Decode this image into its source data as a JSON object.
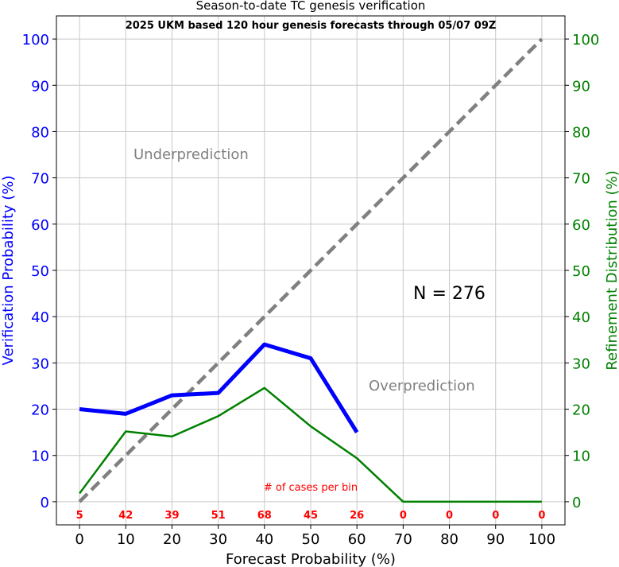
{
  "chart_data": {
    "type": "line",
    "title": "Season-to-date TC genesis verification",
    "subtitle": "2025 UKM based 120 hour genesis forecasts through 05/07 09Z",
    "xlabel": "Forecast Probability (%)",
    "ylabel_left": "Verification Probability (%)",
    "ylabel_right": "Refinement Distribution (%)",
    "xlim": [
      -5,
      105
    ],
    "ylim": [
      -5,
      105
    ],
    "x_ticks": [
      "0",
      "10",
      "20",
      "30",
      "40",
      "50",
      "60",
      "70",
      "80",
      "90",
      "100"
    ],
    "y_ticks": [
      "0",
      "10",
      "20",
      "30",
      "40",
      "50",
      "60",
      "70",
      "80",
      "90",
      "100"
    ],
    "grid": true,
    "series": [
      {
        "color": "#0000ff",
        "style": "thick-solid",
        "x": [
          0,
          10,
          20,
          30,
          40,
          50,
          60
        ],
        "values": [
          20,
          19,
          23,
          23.5,
          34,
          31,
          15
        ]
      },
      {
        "color": "#008000",
        "style": "solid",
        "x": [
          0,
          10,
          20,
          30,
          40,
          50,
          60,
          70,
          80,
          90,
          100
        ],
        "values": [
          1.8,
          15.2,
          14.1,
          18.5,
          24.6,
          16.3,
          9.4,
          0,
          0,
          0,
          0
        ]
      },
      {
        "color": "#808080",
        "style": "dashed",
        "x": [
          0,
          100
        ],
        "values": [
          0,
          100
        ]
      }
    ],
    "annotations": {
      "underprediction": "Underprediction",
      "overprediction": "Overprediction",
      "n_label": "N = 276",
      "cases_label": "# of cases per bin"
    },
    "cases_per_bin": {
      "x": [
        0,
        10,
        20,
        30,
        40,
        50,
        60,
        70,
        80,
        90,
        100
      ],
      "labels": [
        "5",
        "42",
        "39",
        "51",
        "68",
        "45",
        "26",
        "0",
        "0",
        "0",
        "0"
      ]
    }
  }
}
